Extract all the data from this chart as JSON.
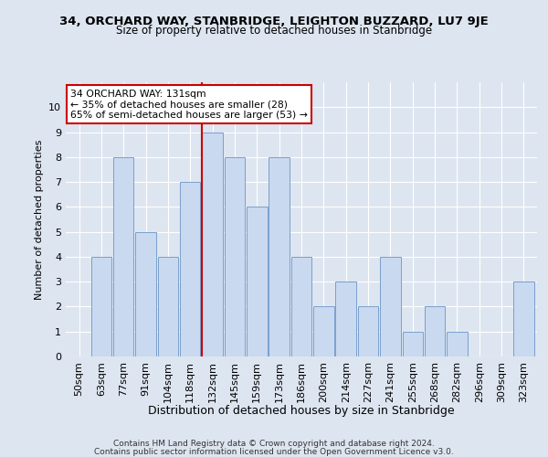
{
  "title1": "34, ORCHARD WAY, STANBRIDGE, LEIGHTON BUZZARD, LU7 9JE",
  "title2": "Size of property relative to detached houses in Stanbridge",
  "xlabel": "Distribution of detached houses by size in Stanbridge",
  "ylabel": "Number of detached properties",
  "categories": [
    "50sqm",
    "63sqm",
    "77sqm",
    "91sqm",
    "104sqm",
    "118sqm",
    "132sqm",
    "145sqm",
    "159sqm",
    "173sqm",
    "186sqm",
    "200sqm",
    "214sqm",
    "227sqm",
    "241sqm",
    "255sqm",
    "268sqm",
    "282sqm",
    "296sqm",
    "309sqm",
    "323sqm"
  ],
  "values": [
    0,
    4,
    8,
    5,
    4,
    7,
    9,
    8,
    6,
    8,
    4,
    2,
    3,
    2,
    4,
    1,
    2,
    1,
    0,
    0,
    3
  ],
  "bar_color": "#c9d9f0",
  "bar_edge_color": "#7aa0cc",
  "highlight_index": 6,
  "highlight_line_color": "#cc0000",
  "ylim": [
    0,
    11
  ],
  "yticks": [
    0,
    1,
    2,
    3,
    4,
    5,
    6,
    7,
    8,
    9,
    10,
    11
  ],
  "annotation_text": "34 ORCHARD WAY: 131sqm\n← 35% of detached houses are smaller (28)\n65% of semi-detached houses are larger (53) →",
  "annotation_box_color": "#ffffff",
  "annotation_box_edge": "#cc0000",
  "footer1": "Contains HM Land Registry data © Crown copyright and database right 2024.",
  "footer2": "Contains public sector information licensed under the Open Government Licence v3.0.",
  "background_color": "#dde5f0",
  "grid_color": "#ffffff"
}
